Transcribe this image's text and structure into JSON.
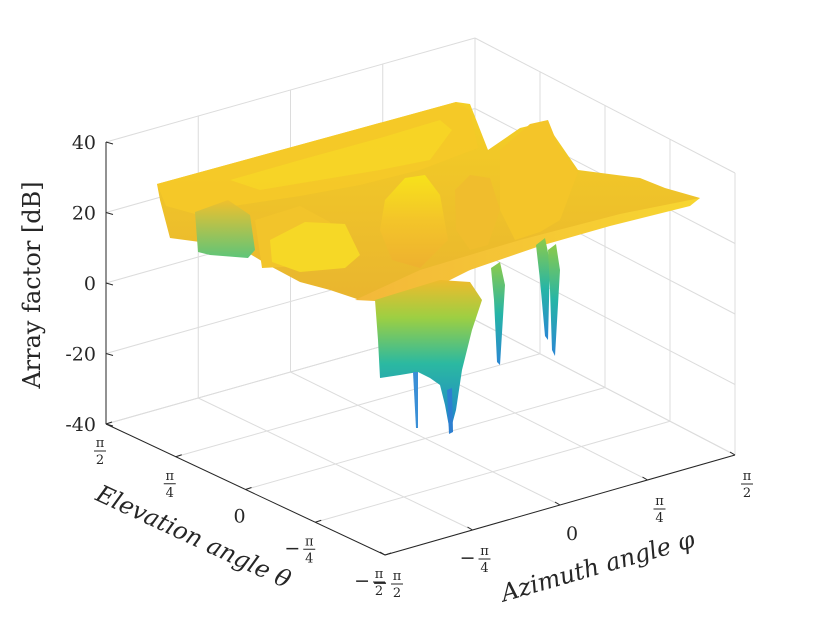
{
  "chart_data": {
    "type": "surface",
    "title": "",
    "xlabel": "Azimuth angle φ",
    "ylabel": "Elevation angle θ",
    "zlabel": "Array factor [dB]",
    "xlim": [
      -1.5708,
      1.5708
    ],
    "ylim": [
      -1.5708,
      1.5708
    ],
    "zlim": [
      -40,
      40
    ],
    "grid": true,
    "colormap": [
      "#1f78c8",
      "#21b7a4",
      "#7fcf4f",
      "#f2c12a",
      "#f7e21a"
    ],
    "x_ticks": [
      {
        "value": -1.5708,
        "num": "π",
        "den": "2",
        "sign": "−"
      },
      {
        "value": -0.7854,
        "num": "π",
        "den": "4",
        "sign": "−"
      },
      {
        "value": 0,
        "text": "0"
      },
      {
        "value": 0.7854,
        "num": "π",
        "den": "4",
        "sign": ""
      },
      {
        "value": 1.5708,
        "num": "π",
        "den": "2",
        "sign": ""
      }
    ],
    "y_ticks": [
      {
        "value": 1.5708,
        "num": "π",
        "den": "2",
        "sign": ""
      },
      {
        "value": 0.7854,
        "num": "π",
        "den": "4",
        "sign": ""
      },
      {
        "value": 0,
        "text": "0"
      },
      {
        "value": -0.7854,
        "num": "π",
        "den": "4",
        "sign": "−"
      },
      {
        "value": -1.5708,
        "num": "π",
        "den": "2",
        "sign": "−"
      }
    ],
    "z_ticks": [
      "-40",
      "-20",
      "0",
      "20",
      "40"
    ],
    "z_tick_values": [
      -40,
      -20,
      0,
      20,
      40
    ],
    "approx_features": {
      "plateau_level_db": 30,
      "deep_nulls_db": [
        -40,
        -26
      ],
      "null_azimuths": [
        -0.5,
        0.0,
        0.55,
        0.75
      ]
    }
  }
}
